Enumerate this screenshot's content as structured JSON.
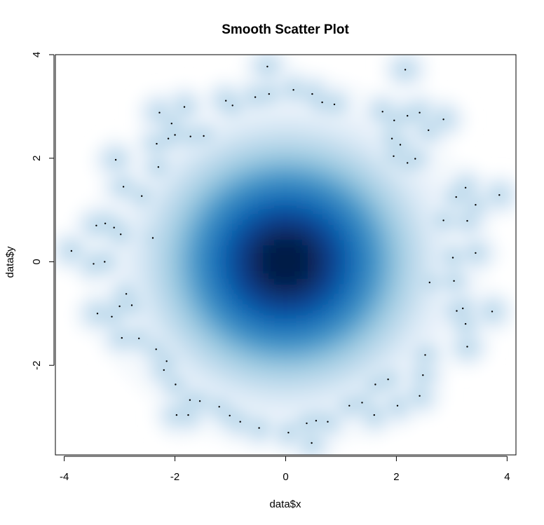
{
  "chart_data": {
    "type": "scatter",
    "title": "Smooth Scatter Plot",
    "xlabel": "data$x",
    "ylabel": "data$y",
    "xlim": [
      -4.16,
      4.16
    ],
    "ylim": [
      -3.73,
      4.0
    ],
    "xticks": [
      -4,
      -2,
      0,
      2,
      4
    ],
    "yticks": [
      -2,
      0,
      2,
      4
    ],
    "grid": false,
    "density_center": [
      0,
      0
    ],
    "density_spread": [
      1.35,
      1.35
    ],
    "colors": {
      "low": "#ffffff",
      "mid": "#6baed6",
      "high": "#08306b",
      "outlier": "#000000"
    },
    "outliers": [
      {
        "x": -3.87,
        "y": 0.21
      },
      {
        "x": -3.42,
        "y": 0.7
      },
      {
        "x": -3.26,
        "y": 0.74
      },
      {
        "x": -3.1,
        "y": 0.66
      },
      {
        "x": -2.98,
        "y": 0.53
      },
      {
        "x": -3.47,
        "y": -0.04
      },
      {
        "x": -3.27,
        "y": 0.0
      },
      {
        "x": -2.93,
        "y": 1.45
      },
      {
        "x": -2.6,
        "y": 1.27
      },
      {
        "x": -3.07,
        "y": 1.97
      },
      {
        "x": -2.88,
        "y": -0.62
      },
      {
        "x": -3.14,
        "y": -1.06
      },
      {
        "x": -3.0,
        "y": -0.86
      },
      {
        "x": -2.78,
        "y": -0.84
      },
      {
        "x": -2.96,
        "y": -1.47
      },
      {
        "x": -3.4,
        "y": -1.0
      },
      {
        "x": -2.65,
        "y": -1.48
      },
      {
        "x": -2.34,
        "y": -1.69
      },
      {
        "x": -2.15,
        "y": -1.92
      },
      {
        "x": -1.99,
        "y": -2.37
      },
      {
        "x": -2.2,
        "y": -2.09
      },
      {
        "x": -1.97,
        "y": -2.96
      },
      {
        "x": -1.76,
        "y": -2.96
      },
      {
        "x": -1.55,
        "y": -2.69
      },
      {
        "x": -1.01,
        "y": -2.97
      },
      {
        "x": -0.82,
        "y": -3.09
      },
      {
        "x": -1.2,
        "y": -2.8
      },
      {
        "x": -2.33,
        "y": 2.28
      },
      {
        "x": -2.3,
        "y": 1.83
      },
      {
        "x": -2.12,
        "y": 2.38
      },
      {
        "x": -2.0,
        "y": 2.45
      },
      {
        "x": -2.28,
        "y": 2.88
      },
      {
        "x": -2.06,
        "y": 2.67
      },
      {
        "x": -1.83,
        "y": 2.99
      },
      {
        "x": -1.72,
        "y": 2.42
      },
      {
        "x": -1.48,
        "y": 2.43
      },
      {
        "x": -1.08,
        "y": 3.11
      },
      {
        "x": -0.96,
        "y": 3.02
      },
      {
        "x": -0.55,
        "y": 3.18
      },
      {
        "x": -0.3,
        "y": 3.24
      },
      {
        "x": -0.33,
        "y": 3.77
      },
      {
        "x": 0.14,
        "y": 3.32
      },
      {
        "x": 0.48,
        "y": 3.24
      },
      {
        "x": 0.66,
        "y": 3.08
      },
      {
        "x": 0.88,
        "y": 3.04
      },
      {
        "x": 2.16,
        "y": 3.71
      },
      {
        "x": 1.75,
        "y": 2.9
      },
      {
        "x": 1.96,
        "y": 2.73
      },
      {
        "x": 2.2,
        "y": 2.82
      },
      {
        "x": 2.42,
        "y": 2.88
      },
      {
        "x": 2.58,
        "y": 2.54
      },
      {
        "x": 2.85,
        "y": 2.75
      },
      {
        "x": 1.92,
        "y": 2.38
      },
      {
        "x": 2.07,
        "y": 2.26
      },
      {
        "x": 1.95,
        "y": 2.04
      },
      {
        "x": 2.2,
        "y": 1.91
      },
      {
        "x": 2.34,
        "y": 1.99
      },
      {
        "x": 3.08,
        "y": 1.25
      },
      {
        "x": 3.25,
        "y": 1.43
      },
      {
        "x": 3.43,
        "y": 1.1
      },
      {
        "x": 3.86,
        "y": 1.29
      },
      {
        "x": 2.85,
        "y": 0.8
      },
      {
        "x": 3.28,
        "y": 0.79
      },
      {
        "x": 3.43,
        "y": 0.17
      },
      {
        "x": 3.02,
        "y": 0.08
      },
      {
        "x": 3.04,
        "y": -0.37
      },
      {
        "x": 3.09,
        "y": -0.95
      },
      {
        "x": 3.2,
        "y": -0.9
      },
      {
        "x": 3.25,
        "y": -1.2
      },
      {
        "x": 3.73,
        "y": -0.96
      },
      {
        "x": 3.28,
        "y": -1.64
      },
      {
        "x": 2.52,
        "y": -1.8
      },
      {
        "x": 2.48,
        "y": -2.19
      },
      {
        "x": 2.42,
        "y": -2.59
      },
      {
        "x": 1.85,
        "y": -2.27
      },
      {
        "x": 1.62,
        "y": -2.37
      },
      {
        "x": 1.38,
        "y": -2.72
      },
      {
        "x": 1.15,
        "y": -2.78
      },
      {
        "x": 0.76,
        "y": -3.09
      },
      {
        "x": 0.55,
        "y": -3.07
      },
      {
        "x": 0.38,
        "y": -3.12
      },
      {
        "x": 0.05,
        "y": -3.3
      },
      {
        "x": 0.47,
        "y": -3.5
      },
      {
        "x": -0.48,
        "y": -3.21
      },
      {
        "x": 2.02,
        "y": -2.78
      },
      {
        "x": 1.6,
        "y": -2.96
      },
      {
        "x": -1.73,
        "y": -2.67
      },
      {
        "x": -2.4,
        "y": 0.46
      },
      {
        "x": 2.6,
        "y": -0.4
      }
    ]
  }
}
